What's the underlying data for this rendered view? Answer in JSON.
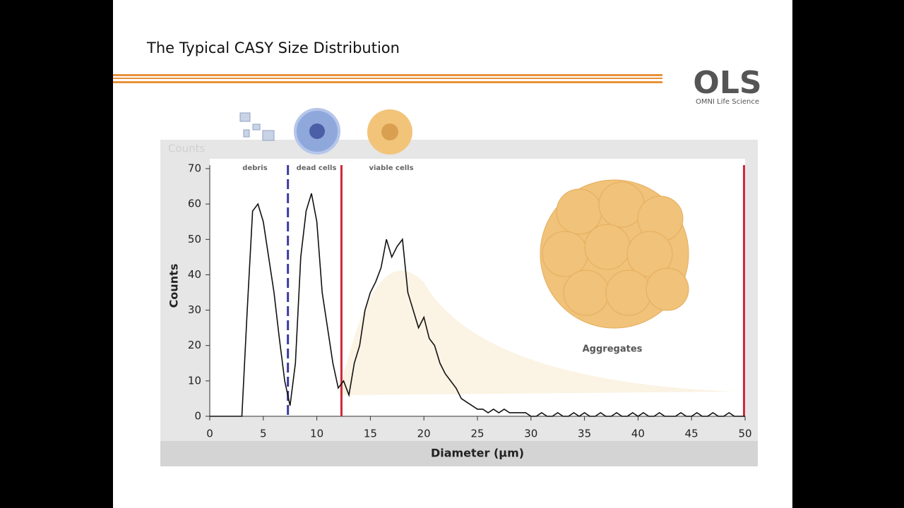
{
  "slide": {
    "title": "The Typical CASY Size Distribution",
    "logo": "OLS",
    "logo_subtitle": "OMNI Life Science"
  },
  "chart_data": {
    "type": "line",
    "background_label": "Counts",
    "xlabel": "Diameter (µm)",
    "ylabel": "Counts",
    "annotations": [
      "debris",
      "dead cells",
      "viable cells",
      "Aggregates"
    ],
    "xlim": [
      0,
      50
    ],
    "ylim": [
      0,
      70
    ],
    "xticks": [
      0,
      5,
      10,
      15,
      20,
      25,
      30,
      35,
      40,
      45,
      50
    ],
    "yticks": [
      0,
      10,
      20,
      30,
      40,
      50,
      60,
      70
    ],
    "grid": false,
    "markers": [
      {
        "value": 7.3,
        "color": "#3a3aa0",
        "style": "dashed"
      },
      {
        "value": 12.3,
        "color": "#d0283a",
        "style": "solid"
      },
      {
        "value": 49.9,
        "color": "#d0283a",
        "style": "solid"
      }
    ],
    "series": [
      {
        "name": "Counts",
        "color": "#111111",
        "x": [
          0,
          0.5,
          1,
          1.5,
          2,
          2.5,
          3,
          3.5,
          4,
          4.5,
          5,
          5.5,
          6,
          6.5,
          7,
          7.5,
          8,
          8.5,
          9,
          9.5,
          10,
          10.5,
          11,
          11.5,
          12,
          12.5,
          13,
          13.5,
          14,
          14.5,
          15,
          15.5,
          16,
          16.5,
          17,
          17.5,
          18,
          18.5,
          19,
          19.5,
          20,
          20.5,
          21,
          21.5,
          22,
          22.5,
          23,
          23.5,
          24,
          24.5,
          25,
          25.5,
          26,
          26.5,
          27,
          27.5,
          28,
          28.5,
          29,
          29.5,
          30,
          30.5,
          31,
          31.5,
          32,
          32.5,
          33,
          33.5,
          34,
          34.5,
          35,
          35.5,
          36,
          36.5,
          37,
          37.5,
          38,
          38.5,
          39,
          39.5,
          40,
          40.5,
          41,
          41.5,
          42,
          42.5,
          43,
          43.5,
          44,
          44.5,
          45,
          45.5,
          46,
          46.5,
          47,
          47.5,
          48,
          48.5,
          49,
          49.5,
          50
        ],
        "values": [
          0,
          0,
          0,
          0,
          0,
          0,
          0,
          30,
          58,
          60,
          55,
          45,
          35,
          22,
          10,
          3,
          15,
          45,
          58,
          63,
          55,
          35,
          25,
          15,
          8,
          10,
          6,
          15,
          20,
          30,
          35,
          38,
          42,
          50,
          45,
          48,
          50,
          35,
          30,
          25,
          28,
          22,
          20,
          15,
          12,
          10,
          8,
          5,
          4,
          3,
          2,
          2,
          1,
          2,
          1,
          2,
          1,
          1,
          1,
          1,
          0,
          0,
          1,
          0,
          0,
          1,
          0,
          0,
          1,
          0,
          1,
          0,
          0,
          1,
          0,
          0,
          1,
          0,
          0,
          1,
          0,
          1,
          0,
          0,
          1,
          0,
          0,
          0,
          1,
          0,
          0,
          1,
          0,
          0,
          1,
          0,
          0,
          1,
          0,
          0,
          0
        ]
      }
    ]
  }
}
